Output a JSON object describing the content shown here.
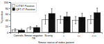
{
  "chart_data": {
    "type": "bar",
    "categories": [
      "Controls",
      "Smear negative\nTB",
      "Scanty",
      "+",
      "++",
      "+++"
    ],
    "series": [
      {
        "name": "C/TST Positive",
        "color": "#ffffff",
        "values": [
          8,
          14,
          42,
          42,
          40,
          42
        ],
        "errors": [
          4,
          5,
          15,
          12,
          12,
          13
        ]
      },
      {
        "name": "QFT-IT Positive",
        "color": "#111111",
        "values": [
          7,
          16,
          62,
          52,
          50,
          65
        ],
        "errors": [
          4,
          6,
          16,
          14,
          13,
          15
        ]
      }
    ],
    "xlabel": "Smear status of index patient",
    "ylabel": "% positive",
    "ylim": [
      0,
      100
    ],
    "yticks": [
      0,
      20,
      40,
      60,
      80,
      100
    ],
    "legend": "upper left"
  }
}
